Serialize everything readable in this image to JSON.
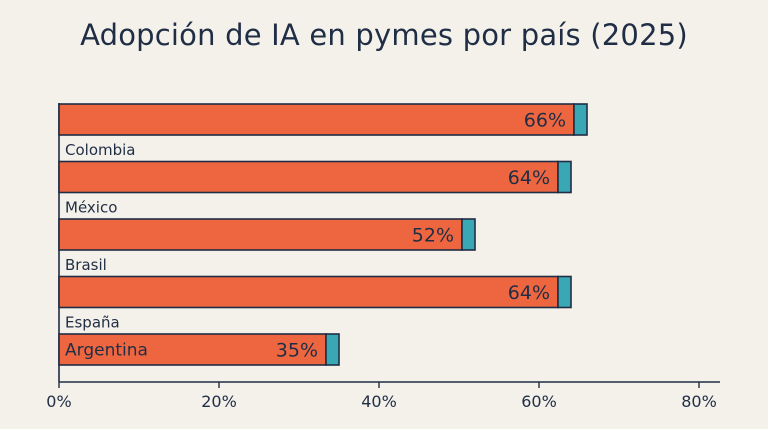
{
  "title": "Adopción de IA en pymes por país (2025)",
  "colors": {
    "bar": "#ee6640",
    "bar_cap": "#3aa7b5",
    "outline": "#1f2d45",
    "background": "#f4f1ea"
  },
  "chart_data": {
    "type": "bar",
    "orientation": "horizontal",
    "title": "Adopción de IA en pymes por país (2025)",
    "categories": [
      "Colombia",
      "México",
      "Brasil",
      "España",
      "Argentina"
    ],
    "values": [
      66,
      64,
      52,
      64,
      35
    ],
    "value_labels": [
      "66%",
      "64%",
      "52%",
      "64%",
      "35%"
    ],
    "xlim": [
      0,
      80
    ],
    "xticks": [
      0,
      20,
      40,
      60,
      80
    ],
    "xtick_labels": [
      "0%",
      "20%",
      "40%",
      "60%",
      "80%"
    ],
    "xlabel": "",
    "ylabel": "",
    "grid": false,
    "legend": false
  }
}
